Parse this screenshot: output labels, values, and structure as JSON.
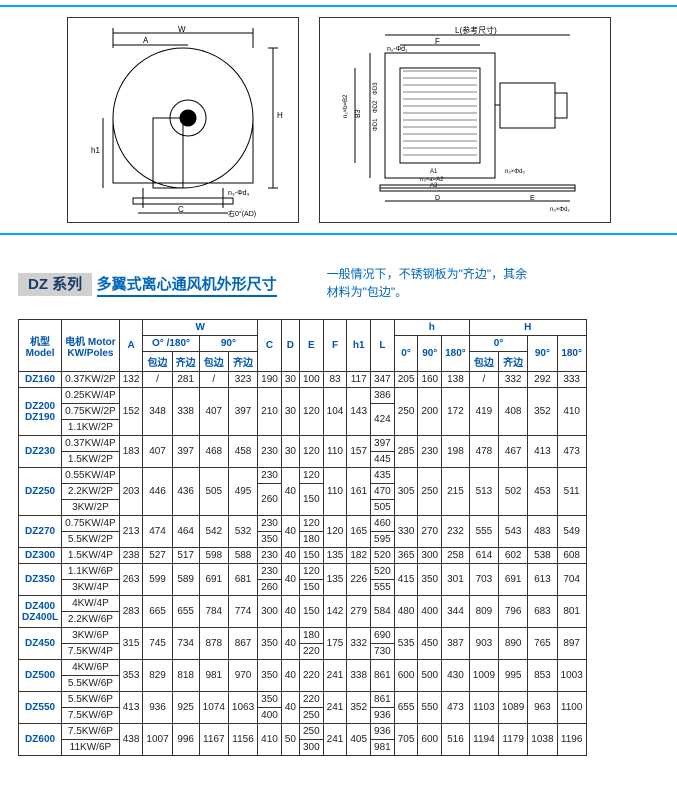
{
  "series_tag": "DZ 系列",
  "series_title": "多翼式离心通风机外形尺寸",
  "note_line1": "一般情况下，不锈钢板为\"齐边\"，其余",
  "note_line2": "材料为\"包边\"。",
  "headers": {
    "model": "机型\nModel",
    "motor": "电机 Motor\nKW/Poles",
    "A": "A",
    "W": "W",
    "W0180": "O° /180°",
    "W90": "90°",
    "bao": "包边",
    "qi": "齐边",
    "C": "C",
    "D": "D",
    "E": "E",
    "F": "F",
    "h1": "h1",
    "L": "L",
    "h": "h",
    "h0": "0°",
    "h90": "90°",
    "h180": "180°",
    "H": "H",
    "H0": "0°",
    "H90": "90°",
    "H180": "180°"
  },
  "diagram_labels": {
    "front": {
      "W": "W",
      "A": "A",
      "H": "H",
      "h1": "h1",
      "C": "C",
      "nphid": "n₃-Φd₃",
      "angle": "右0°(AD)"
    },
    "side": {
      "L": "L(参考尺寸)",
      "F": "F",
      "nphid1": "n₁-Φd₁",
      "B3": "B3",
      "n2b": "n₂×b=B2",
      "phiD1": "ΦD1",
      "phiD2": "ΦD2",
      "phiD3": "ΦD3",
      "A1": "A1",
      "A2": "n₃×a=A2",
      "A3": "A3",
      "n3phid3": "n₃×Φd₃",
      "D": "D",
      "E": "E",
      "n3phid2": "n₃×Φd₂"
    }
  },
  "rows": [
    {
      "model": "DZ160",
      "motors": [
        "0.37KW/2P"
      ],
      "A": "132",
      "Wb1": "/",
      "Wq1": "281",
      "Wb2": "/",
      "Wq2": "323",
      "C": "190",
      "D": "30",
      "E": "100",
      "F": "83",
      "h1": "117",
      "L": [
        "347"
      ],
      "h0": "205",
      "h90": "160",
      "h180": "138",
      "Hb": "/",
      "Hq": "332",
      "H90": "292",
      "H180": "333"
    },
    {
      "model": "DZ200\nDZ190",
      "motors": [
        "0.25KW/4P",
        "0.75KW/2P",
        "1.1KW/2P"
      ],
      "A": "152",
      "Wb1": "348",
      "Wq1": "338",
      "Wb2": "407",
      "Wq2": "397",
      "C": "210",
      "D": "30",
      "E": "120",
      "F": "104",
      "h1": "143",
      "L": [
        "386",
        "424"
      ],
      "h0": "250",
      "h90": "200",
      "h180": "172",
      "Hb": "419",
      "Hq": "408",
      "H90": "352",
      "H180": "410"
    },
    {
      "model": "DZ230",
      "motors": [
        "0.37KW/4P",
        "1.5KW/2P"
      ],
      "A": "183",
      "Wb1": "407",
      "Wq1": "397",
      "Wb2": "468",
      "Wq2": "458",
      "C": "230",
      "D": "30",
      "E": "120",
      "F": "110",
      "h1": "157",
      "L": [
        "397",
        "445"
      ],
      "h0": "285",
      "h90": "230",
      "h180": "198",
      "Hb": "478",
      "Hq": "467",
      "H90": "413",
      "H180": "473"
    },
    {
      "model": "DZ250",
      "motors": [
        "0.55KW/4P",
        "2.2KW/2P",
        "3KW/2P"
      ],
      "A": "203",
      "Wb1": "446",
      "Wq1": "436",
      "Wb2": "505",
      "Wq2": "495",
      "C": [
        "230",
        "260"
      ],
      "D": "40",
      "E": [
        "120",
        "150"
      ],
      "F": "110",
      "h1": "161",
      "L": [
        "435",
        "470",
        "505"
      ],
      "h0": "305",
      "h90": "250",
      "h180": "215",
      "Hb": "513",
      "Hq": "502",
      "H90": "453",
      "H180": "511"
    },
    {
      "model": "DZ270",
      "motors": [
        "0.75KW/4P",
        "5.5KW/2P"
      ],
      "A": "213",
      "Wb1": "474",
      "Wq1": "464",
      "Wb2": "542",
      "Wq2": "532",
      "C": [
        "230",
        "350"
      ],
      "D": "40",
      "E": [
        "120",
        "180"
      ],
      "F": "120",
      "h1": "165",
      "L": [
        "460",
        "595"
      ],
      "h0": "330",
      "h90": "270",
      "h180": "232",
      "Hb": "555",
      "Hq": "543",
      "H90": "483",
      "H180": "549"
    },
    {
      "model": "DZ300",
      "motors": [
        "1.5KW/4P"
      ],
      "A": "238",
      "Wb1": "527",
      "Wq1": "517",
      "Wb2": "598",
      "Wq2": "588",
      "C": "230",
      "D": "40",
      "E": "150",
      "F": "135",
      "h1": "182",
      "L": [
        "520"
      ],
      "h0": "365",
      "h90": "300",
      "h180": "258",
      "Hb": "614",
      "Hq": "602",
      "H90": "538",
      "H180": "608"
    },
    {
      "model": "DZ350",
      "motors": [
        "1.1KW/6P",
        "3KW/4P"
      ],
      "A": "263",
      "Wb1": "599",
      "Wq1": "589",
      "Wb2": "691",
      "Wq2": "681",
      "C": [
        "230",
        "260"
      ],
      "D": "40",
      "E": [
        "120",
        "150"
      ],
      "F": "135",
      "h1": "226",
      "L": [
        "520",
        "555"
      ],
      "h0": "415",
      "h90": "350",
      "h180": "301",
      "Hb": "703",
      "Hq": "691",
      "H90": "613",
      "H180": "704"
    },
    {
      "model": "DZ400\nDZ400L",
      "motors": [
        "4KW/4P",
        "2.2KW/6P"
      ],
      "A": "283",
      "Wb1": "665",
      "Wq1": "655",
      "Wb2": "784",
      "Wq2": "774",
      "C": "300",
      "D": "40",
      "E": "150",
      "F": "142",
      "h1": "279",
      "L": [
        "584"
      ],
      "h0": "480",
      "h90": "400",
      "h180": "344",
      "Hb": "809",
      "Hq": "796",
      "H90": "683",
      "H180": "801"
    },
    {
      "model": "DZ450",
      "motors": [
        "3KW/6P",
        "7.5KW/4P"
      ],
      "A": "315",
      "Wb1": "745",
      "Wq1": "734",
      "Wb2": "878",
      "Wq2": "867",
      "C": "350",
      "D": "40",
      "E": [
        "180",
        "220"
      ],
      "F": "175",
      "h1": "332",
      "L": [
        "690",
        "730"
      ],
      "h0": "535",
      "h90": "450",
      "h180": "387",
      "Hb": "903",
      "Hq": "890",
      "H90": "765",
      "H180": "897"
    },
    {
      "model": "DZ500",
      "motors": [
        "4KW/6P",
        "5.5KW/6P"
      ],
      "A": "353",
      "Wb1": "829",
      "Wq1": "818",
      "Wb2": "981",
      "Wq2": "970",
      "C": "350",
      "D": "40",
      "E": "220",
      "F": "241",
      "h1": "338",
      "L": [
        "861"
      ],
      "h0": "600",
      "h90": "500",
      "h180": "430",
      "Hb": "1009",
      "Hq": "995",
      "H90": "853",
      "H180": "1003"
    },
    {
      "model": "DZ550",
      "motors": [
        "5.5KW/6P",
        "7.5KW/6P"
      ],
      "A": "413",
      "Wb1": "936",
      "Wq1": "925",
      "Wb2": "1074",
      "Wq2": "1063",
      "C": [
        "350",
        "400"
      ],
      "D": "40",
      "E": [
        "220",
        "250"
      ],
      "F": "241",
      "h1": "352",
      "L": [
        "861",
        "936"
      ],
      "h0": "655",
      "h90": "550",
      "h180": "473",
      "Hb": "1103",
      "Hq": "1089",
      "H90": "963",
      "H180": "1100"
    },
    {
      "model": "DZ600",
      "motors": [
        "7.5KW/6P",
        "11KW/6P"
      ],
      "A": "438",
      "Wb1": "1007",
      "Wq1": "996",
      "Wb2": "1167",
      "Wq2": "1156",
      "C": "410",
      "D": "50",
      "E": [
        "250",
        "300"
      ],
      "F": "241",
      "h1": "405",
      "L": [
        "936",
        "981"
      ],
      "h0": "705",
      "h90": "600",
      "h180": "516",
      "Hb": "1194",
      "Hq": "1179",
      "H90": "1038",
      "H180": "1196"
    }
  ]
}
